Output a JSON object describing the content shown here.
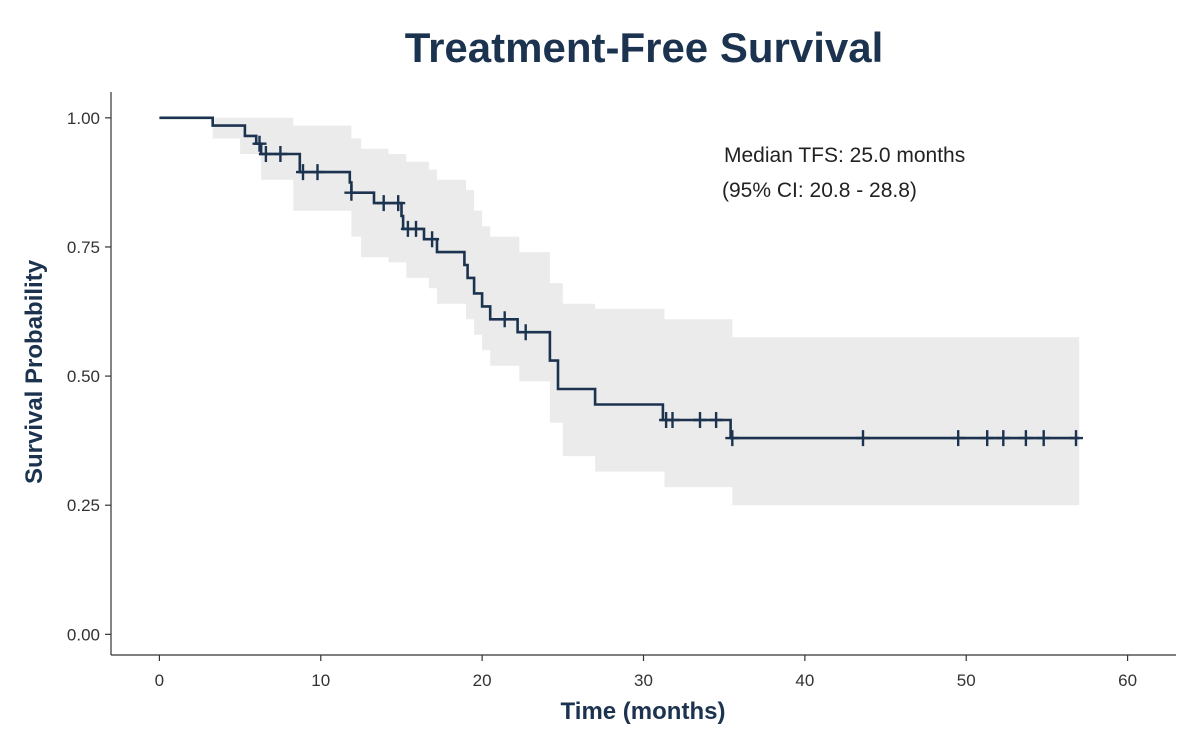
{
  "chart_data": {
    "type": "line",
    "title": "Treatment-Free Survival",
    "xlabel": "Time (months)",
    "ylabel": "Survival Probability",
    "xlim": [
      -3,
      63
    ],
    "ylim": [
      -0.04,
      1.05
    ],
    "x_ticks": [
      0,
      10,
      20,
      30,
      40,
      50,
      60
    ],
    "x_tick_labels": [
      "0",
      "10",
      "20",
      "30",
      "40",
      "50",
      "60"
    ],
    "y_ticks": [
      0,
      0.25,
      0.5,
      0.75,
      1.0
    ],
    "y_tick_labels": [
      "0.00",
      "0.25",
      "0.50",
      "0.75",
      "1.00"
    ],
    "grid": false,
    "series": [
      {
        "color": "#1c3350",
        "steps": [
          {
            "x": 0,
            "y": 1.0
          },
          {
            "x": 3.3,
            "y": 0.985
          },
          {
            "x": 5.3,
            "y": 0.965
          },
          {
            "x": 6.0,
            "y": 0.95
          },
          {
            "x": 6.3,
            "y": 0.93
          },
          {
            "x": 8.7,
            "y": 0.895
          },
          {
            "x": 11.8,
            "y": 0.875
          },
          {
            "x": 11.9,
            "y": 0.855
          },
          {
            "x": 13.3,
            "y": 0.835
          },
          {
            "x": 15.0,
            "y": 0.81
          },
          {
            "x": 15.1,
            "y": 0.785
          },
          {
            "x": 16.4,
            "y": 0.765
          },
          {
            "x": 17.2,
            "y": 0.74
          },
          {
            "x": 18.9,
            "y": 0.715
          },
          {
            "x": 19.1,
            "y": 0.69
          },
          {
            "x": 19.5,
            "y": 0.66
          },
          {
            "x": 20.0,
            "y": 0.635
          },
          {
            "x": 20.5,
            "y": 0.61
          },
          {
            "x": 22.2,
            "y": 0.585
          },
          {
            "x": 24.2,
            "y": 0.53
          },
          {
            "x": 24.7,
            "y": 0.475
          },
          {
            "x": 27.0,
            "y": 0.445
          },
          {
            "x": 31.2,
            "y": 0.415
          },
          {
            "x": 35.4,
            "y": 0.38
          },
          {
            "x": 57.0,
            "y": 0.38
          }
        ],
        "censored": [
          {
            "x": 6.2,
            "y": 0.95
          },
          {
            "x": 6.6,
            "y": 0.93
          },
          {
            "x": 7.5,
            "y": 0.93
          },
          {
            "x": 8.9,
            "y": 0.895
          },
          {
            "x": 9.8,
            "y": 0.895
          },
          {
            "x": 11.9,
            "y": 0.855
          },
          {
            "x": 13.9,
            "y": 0.835
          },
          {
            "x": 14.8,
            "y": 0.835
          },
          {
            "x": 15.4,
            "y": 0.785
          },
          {
            "x": 15.9,
            "y": 0.785
          },
          {
            "x": 16.9,
            "y": 0.765
          },
          {
            "x": 21.4,
            "y": 0.61
          },
          {
            "x": 22.7,
            "y": 0.585
          },
          {
            "x": 31.4,
            "y": 0.415
          },
          {
            "x": 31.8,
            "y": 0.415
          },
          {
            "x": 33.5,
            "y": 0.415
          },
          {
            "x": 34.5,
            "y": 0.415
          },
          {
            "x": 35.5,
            "y": 0.38
          },
          {
            "x": 43.6,
            "y": 0.38
          },
          {
            "x": 49.5,
            "y": 0.38
          },
          {
            "x": 51.3,
            "y": 0.38
          },
          {
            "x": 52.3,
            "y": 0.38
          },
          {
            "x": 53.7,
            "y": 0.38
          },
          {
            "x": 54.8,
            "y": 0.38
          },
          {
            "x": 56.8,
            "y": 0.38
          }
        ]
      }
    ],
    "confidence_band": {
      "color": "#ebebeb",
      "steps": [
        {
          "x": 0,
          "lo": 1.0,
          "hi": 1.0
        },
        {
          "x": 3.3,
          "lo": 0.96,
          "hi": 1.0
        },
        {
          "x": 5.0,
          "lo": 0.93,
          "hi": 1.0
        },
        {
          "x": 6.3,
          "lo": 0.88,
          "hi": 1.0
        },
        {
          "x": 8.3,
          "lo": 0.82,
          "hi": 0.985
        },
        {
          "x": 11.9,
          "lo": 0.77,
          "hi": 0.96
        },
        {
          "x": 12.5,
          "lo": 0.73,
          "hi": 0.94
        },
        {
          "x": 14.2,
          "lo": 0.72,
          "hi": 0.93
        },
        {
          "x": 15.3,
          "lo": 0.69,
          "hi": 0.915
        },
        {
          "x": 16.7,
          "lo": 0.67,
          "hi": 0.9
        },
        {
          "x": 17.2,
          "lo": 0.64,
          "hi": 0.88
        },
        {
          "x": 19.0,
          "lo": 0.61,
          "hi": 0.86
        },
        {
          "x": 19.5,
          "lo": 0.58,
          "hi": 0.82
        },
        {
          "x": 20.0,
          "lo": 0.55,
          "hi": 0.79
        },
        {
          "x": 20.5,
          "lo": 0.52,
          "hi": 0.77
        },
        {
          "x": 22.3,
          "lo": 0.49,
          "hi": 0.74
        },
        {
          "x": 24.2,
          "lo": 0.41,
          "hi": 0.68
        },
        {
          "x": 25.0,
          "lo": 0.345,
          "hi": 0.64
        },
        {
          "x": 27.0,
          "lo": 0.315,
          "hi": 0.63
        },
        {
          "x": 31.3,
          "lo": 0.285,
          "hi": 0.61
        },
        {
          "x": 35.5,
          "lo": 0.25,
          "hi": 0.575
        },
        {
          "x": 57.0,
          "lo": 0.25,
          "hi": 0.575
        }
      ]
    },
    "annotations": [
      "Median TFS: 25.0 months",
      "(95% CI: 20.8 - 28.8)"
    ]
  }
}
